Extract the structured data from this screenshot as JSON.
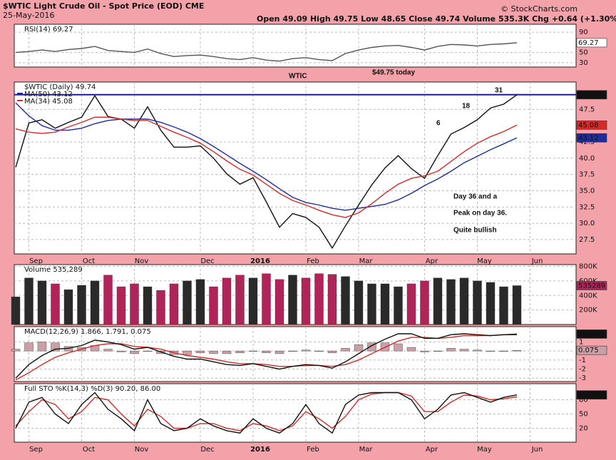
{
  "header": {
    "title": "$WTIC Light Crude Oil - Spot Price (EOD) CME",
    "date": "25-May-2016",
    "quote": "Open 49.09  High 49.75  Low 48.65  Close 49.74  Volume 535.3K  Chg +0.64 (+1.30%)",
    "credit": "© StockCharts.com"
  },
  "chart_data": [
    {
      "type": "line",
      "legend": "RSI(14) 69.27",
      "ylim": [
        21.4,
        105.7
      ],
      "yticks": [
        90,
        50,
        30
      ],
      "series": [
        {
          "name": "RSI(14)",
          "color": "#555555",
          "last_label": "69.27",
          "values": [
            50,
            52,
            55,
            52,
            56,
            58,
            62,
            54,
            52,
            50,
            57,
            48,
            42,
            44,
            45,
            42,
            38,
            36,
            40,
            35,
            33,
            38,
            40,
            36,
            34,
            48,
            55,
            60,
            63,
            64,
            60,
            55,
            62,
            66,
            65,
            63,
            66,
            67,
            69.27,
            null
          ]
        }
      ]
    },
    {
      "type": "line",
      "legend": "$WTIC (Daily) 49.74",
      "ylim": [
        25.3,
        51.7
      ],
      "yticks": [
        {
          "value": 27.5,
          "label": "27.5"
        },
        {
          "value": 30,
          "label": "30.0"
        },
        {
          "value": 32.5,
          "label": "32.5"
        },
        {
          "value": 35,
          "label": "35.0"
        },
        {
          "value": 37.5,
          "label": "37.5"
        },
        {
          "value": 40,
          "label": "40.0"
        },
        {
          "value": 42.5,
          "label": "42.5"
        },
        {
          "value": 47.5,
          "label": "47.5"
        }
      ],
      "ref_line": 49.75,
      "ref_color": "#1a1aa0",
      "categories": [
        null,
        "Sep",
        null,
        null,
        null,
        "Oct",
        null,
        null,
        null,
        "Nov",
        null,
        null,
        null,
        null,
        "Dec",
        null,
        null,
        null,
        "2016",
        null,
        null,
        null,
        "Feb",
        null,
        null,
        null,
        "Mar",
        null,
        null,
        null,
        null,
        "Apr",
        null,
        null,
        null,
        "May",
        null,
        null,
        null,
        "Jun"
      ],
      "series": [
        {
          "name": "$WTIC",
          "color": "#111111",
          "last_label": "49.74",
          "values": [
            38.6,
            45.4,
            45.9,
            44.6,
            45.5,
            46.3,
            49.6,
            46.4,
            46.0,
            44.6,
            47.9,
            44.3,
            41.7,
            41.7,
            41.9,
            40.0,
            37.6,
            36.0,
            37.0,
            33.3,
            29.4,
            31.5,
            30.9,
            29.4,
            26.2,
            29.6,
            32.8,
            35.9,
            38.5,
            40.4,
            38.4,
            36.9,
            40.4,
            43.7,
            44.7,
            45.9,
            47.7,
            48.3,
            49.74,
            null
          ]
        },
        {
          "name": "MA(50) 43.12",
          "color": "#1f2d9c",
          "last_label": "43.12",
          "values": [
            48.5,
            46.5,
            45.0,
            44.3,
            44.3,
            44.6,
            45.3,
            45.8,
            46.0,
            46.0,
            46.0,
            45.5,
            44.8,
            44.0,
            43.0,
            41.8,
            40.5,
            39.2,
            38.0,
            36.7,
            35.3,
            34.0,
            33.2,
            32.8,
            32.3,
            32.0,
            32.3,
            32.6,
            32.9,
            33.6,
            34.6,
            35.8,
            36.8,
            38.0,
            39.3,
            40.3,
            41.3,
            42.2,
            43.12,
            null
          ]
        },
        {
          "name": "MA(34) 45.08",
          "color": "#d42a2a",
          "last_label": "45.08",
          "values": [
            44.5,
            44.0,
            43.8,
            44.0,
            44.8,
            45.5,
            46.3,
            46.3,
            46.0,
            45.8,
            45.8,
            44.9,
            44.0,
            43.2,
            42.3,
            41.0,
            39.6,
            38.3,
            37.4,
            36.0,
            34.6,
            33.5,
            32.8,
            32.0,
            31.3,
            30.9,
            31.6,
            33.0,
            34.6,
            36.0,
            36.9,
            37.3,
            38.0,
            39.5,
            41.0,
            42.3,
            43.3,
            44.1,
            45.08,
            null
          ]
        }
      ],
      "annotations": [
        "WTIC",
        "$49.75 today",
        "6",
        "18",
        "31",
        "Day 36 and a",
        "Peak on day 36.",
        "Quite bullish"
      ]
    },
    {
      "type": "bar",
      "legend": "Volume 535,289",
      "ylim": [
        0,
        825000
      ],
      "yticks": [
        {
          "value": 200000,
          "label": "200K"
        },
        {
          "value": 400000,
          "label": "400K"
        },
        {
          "value": 600000,
          "label": "600K"
        },
        {
          "value": 800000,
          "label": "800K"
        }
      ],
      "up_color": "#2a2a2a",
      "down_color": "#b0245a",
      "series": [
        {
          "name": "Volume",
          "color": "#b0245a",
          "last_label": "535289",
          "values": [
            380000,
            640000,
            600000,
            560000,
            480000,
            540000,
            600000,
            680000,
            520000,
            560000,
            520000,
            470000,
            560000,
            600000,
            620000,
            520000,
            640000,
            680000,
            640000,
            700000,
            620000,
            680000,
            640000,
            700000,
            690000,
            660000,
            600000,
            560000,
            560000,
            520000,
            560000,
            600000,
            640000,
            620000,
            640000,
            600000,
            580000,
            520000,
            535289,
            null
          ]
        }
      ]
    },
    {
      "type": "line",
      "legend": "MACD(12,26,9) 1.866, 1.791, 0.075",
      "ylim": [
        -3.38,
        2.69
      ],
      "yticks": [
        1,
        0,
        -1,
        -2,
        -3
      ],
      "series": [
        {
          "name": "Histogram",
          "color": "#c9a0a6",
          "style": "bar",
          "last_label": "0.075",
          "values": [
            0.2,
            0.9,
            1.0,
            0.9,
            0.5,
            0.4,
            0.6,
            0.2,
            -0.1,
            -0.3,
            0.0,
            -0.3,
            -0.4,
            -0.4,
            -0.2,
            -0.3,
            -0.3,
            -0.2,
            0.0,
            -0.2,
            -0.3,
            0.0,
            0.1,
            0.0,
            -0.2,
            0.3,
            0.7,
            0.9,
            0.9,
            0.8,
            0.4,
            -0.1,
            0.0,
            0.3,
            0.2,
            0.1,
            0.0,
            0.0,
            0.075,
            null
          ]
        },
        {
          "name": "Signal",
          "color": "#d42a2a",
          "values": [
            -3.2,
            -2.4,
            -1.5,
            -0.7,
            -0.2,
            0.2,
            0.6,
            0.8,
            0.8,
            0.5,
            0.4,
            0.2,
            -0.2,
            -0.5,
            -0.7,
            -0.9,
            -1.2,
            -1.4,
            -1.4,
            -1.5,
            -1.7,
            -1.7,
            -1.6,
            -1.6,
            -1.7,
            -1.5,
            -1.0,
            -0.3,
            0.4,
            1.1,
            1.5,
            1.5,
            1.4,
            1.5,
            1.7,
            1.7,
            1.7,
            1.8,
            1.791,
            null
          ]
        },
        {
          "name": "MACD",
          "color": "#111111",
          "last_label": "1.866",
          "values": [
            -3.0,
            -1.5,
            -0.5,
            0.2,
            0.3,
            0.6,
            1.2,
            1.0,
            0.7,
            0.2,
            0.4,
            -0.1,
            -0.6,
            -0.9,
            -0.9,
            -1.2,
            -1.5,
            -1.6,
            -1.4,
            -1.7,
            -2.0,
            -1.7,
            -1.5,
            -1.6,
            -1.9,
            -1.2,
            -0.3,
            0.6,
            1.3,
            1.9,
            1.9,
            1.4,
            1.4,
            1.8,
            1.9,
            1.8,
            1.7,
            1.8,
            1.866,
            null
          ]
        }
      ]
    },
    {
      "type": "line",
      "legend": "Full STO %K(14,3) %D(3) 90.20, 86.00",
      "ylim": [
        -9.2,
        113.8
      ],
      "yticks": [
        80,
        50,
        20
      ],
      "categories": [
        null,
        "Sep",
        null,
        null,
        null,
        "Oct",
        null,
        null,
        null,
        "Nov",
        null,
        null,
        null,
        null,
        "Dec",
        null,
        null,
        null,
        "2016",
        null,
        null,
        null,
        "Feb",
        null,
        null,
        null,
        "Mar",
        null,
        null,
        null,
        null,
        "Apr",
        null,
        null,
        null,
        "May",
        null,
        null,
        null,
        "Jun"
      ],
      "series": [
        {
          "name": "%D(3)",
          "color": "#d42a2a",
          "values": [
            25,
            55,
            80,
            70,
            40,
            55,
            85,
            80,
            50,
            25,
            60,
            45,
            20,
            20,
            30,
            30,
            20,
            15,
            30,
            25,
            15,
            25,
            55,
            40,
            20,
            45,
            80,
            92,
            95,
            95,
            88,
            55,
            55,
            75,
            90,
            88,
            80,
            82,
            86,
            null
          ]
        },
        {
          "name": "%K(14,3)",
          "color": "#111111",
          "last_label": "90.20",
          "values": [
            20,
            75,
            85,
            50,
            30,
            70,
            95,
            60,
            40,
            15,
            80,
            30,
            15,
            20,
            40,
            25,
            15,
            10,
            40,
            20,
            10,
            30,
            70,
            30,
            10,
            70,
            90,
            95,
            95,
            95,
            80,
            40,
            60,
            90,
            95,
            85,
            75,
            85,
            90.2,
            null
          ]
        }
      ]
    }
  ]
}
